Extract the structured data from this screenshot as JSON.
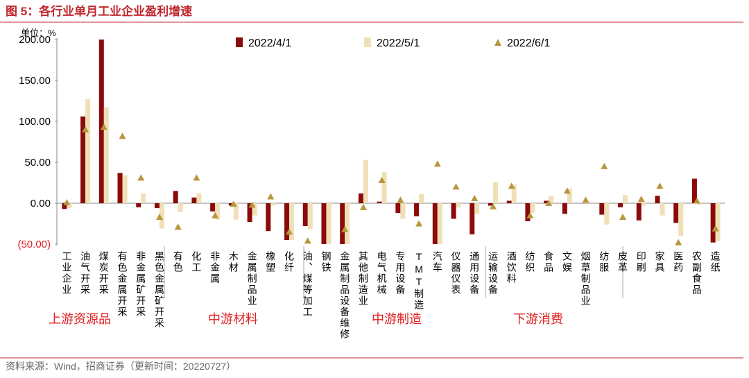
{
  "chart_data": {
    "type": "bar",
    "title": "图 5：各行业单月工业企业盈利增速",
    "y_axis_label": "单位：%",
    "source": "资料来源：Wind，招商证券（更新时间：20220727）",
    "groups": [
      "上游资源品",
      "中游材料",
      "中游制造",
      "下游消费"
    ],
    "categories": [
      "工业企业",
      "油气开采",
      "煤炭开采",
      "有色金属开采",
      "非金属矿开采",
      "黑色金属矿开采",
      "有色",
      "化工",
      "非金属",
      "木材",
      "金属制品业",
      "橡塑",
      "化纤",
      "油、煤等加工",
      "钢铁",
      "金属制品设备维修",
      "其他制造业",
      "电气机械",
      "专用设备",
      "TMT制造",
      "汽车",
      "仪器仪表",
      "通用设备",
      "运输设备",
      "酒饮料",
      "纺织",
      "食品",
      "文娱",
      "烟草制品业",
      "纺服",
      "皮革",
      "印刷",
      "家具",
      "医药",
      "农副食品",
      "造纸"
    ],
    "series": [
      {
        "name": "2022/4/1",
        "color": "#8b0a0a",
        "marker": "bar",
        "values": [
          -7,
          106,
          200,
          37,
          -5,
          -6,
          15,
          7,
          -10,
          -3,
          -23,
          -34,
          -45,
          -28,
          -50,
          -50,
          12,
          2,
          -12,
          -16,
          -50,
          -19,
          -38,
          -3,
          3,
          -22,
          3,
          -13,
          0,
          -14,
          -5,
          -21,
          9,
          -24,
          30,
          -48
        ]
      },
      {
        "name": "2022/5/1",
        "color": "#f0e0b8",
        "marker": "bar",
        "values": [
          -6,
          127,
          117,
          34,
          12,
          -31,
          -11,
          12,
          -20,
          -20,
          -15,
          -3,
          -45,
          -32,
          -50,
          -50,
          53,
          38,
          -19,
          11,
          -50,
          -5,
          -13,
          26,
          23,
          -12,
          9,
          18,
          2,
          -26,
          10,
          -3,
          -15,
          -40,
          -2,
          -46
        ]
      },
      {
        "name": "2022/6/1",
        "color": "#b8963c",
        "marker": "triangle",
        "values": [
          1,
          90,
          93,
          82,
          31,
          -17,
          -29,
          31,
          -15,
          -1,
          -2,
          8,
          -35,
          -46,
          null,
          -32,
          -5,
          28,
          4,
          -25,
          48,
          20,
          6,
          -4,
          21,
          -15,
          0,
          15,
          4,
          45,
          -17,
          5,
          21,
          -48,
          3,
          -31
        ]
      }
    ],
    "ylim": [
      -50,
      200
    ],
    "yticks": [
      {
        "value": -50,
        "label": "(50.00)"
      },
      {
        "value": 0,
        "label": "0.00"
      },
      {
        "value": 50,
        "label": "50.00"
      },
      {
        "value": 100,
        "label": "100.00"
      },
      {
        "value": 150,
        "label": "150.00"
      },
      {
        "value": 200,
        "label": "200.00"
      }
    ],
    "grid": false
  }
}
